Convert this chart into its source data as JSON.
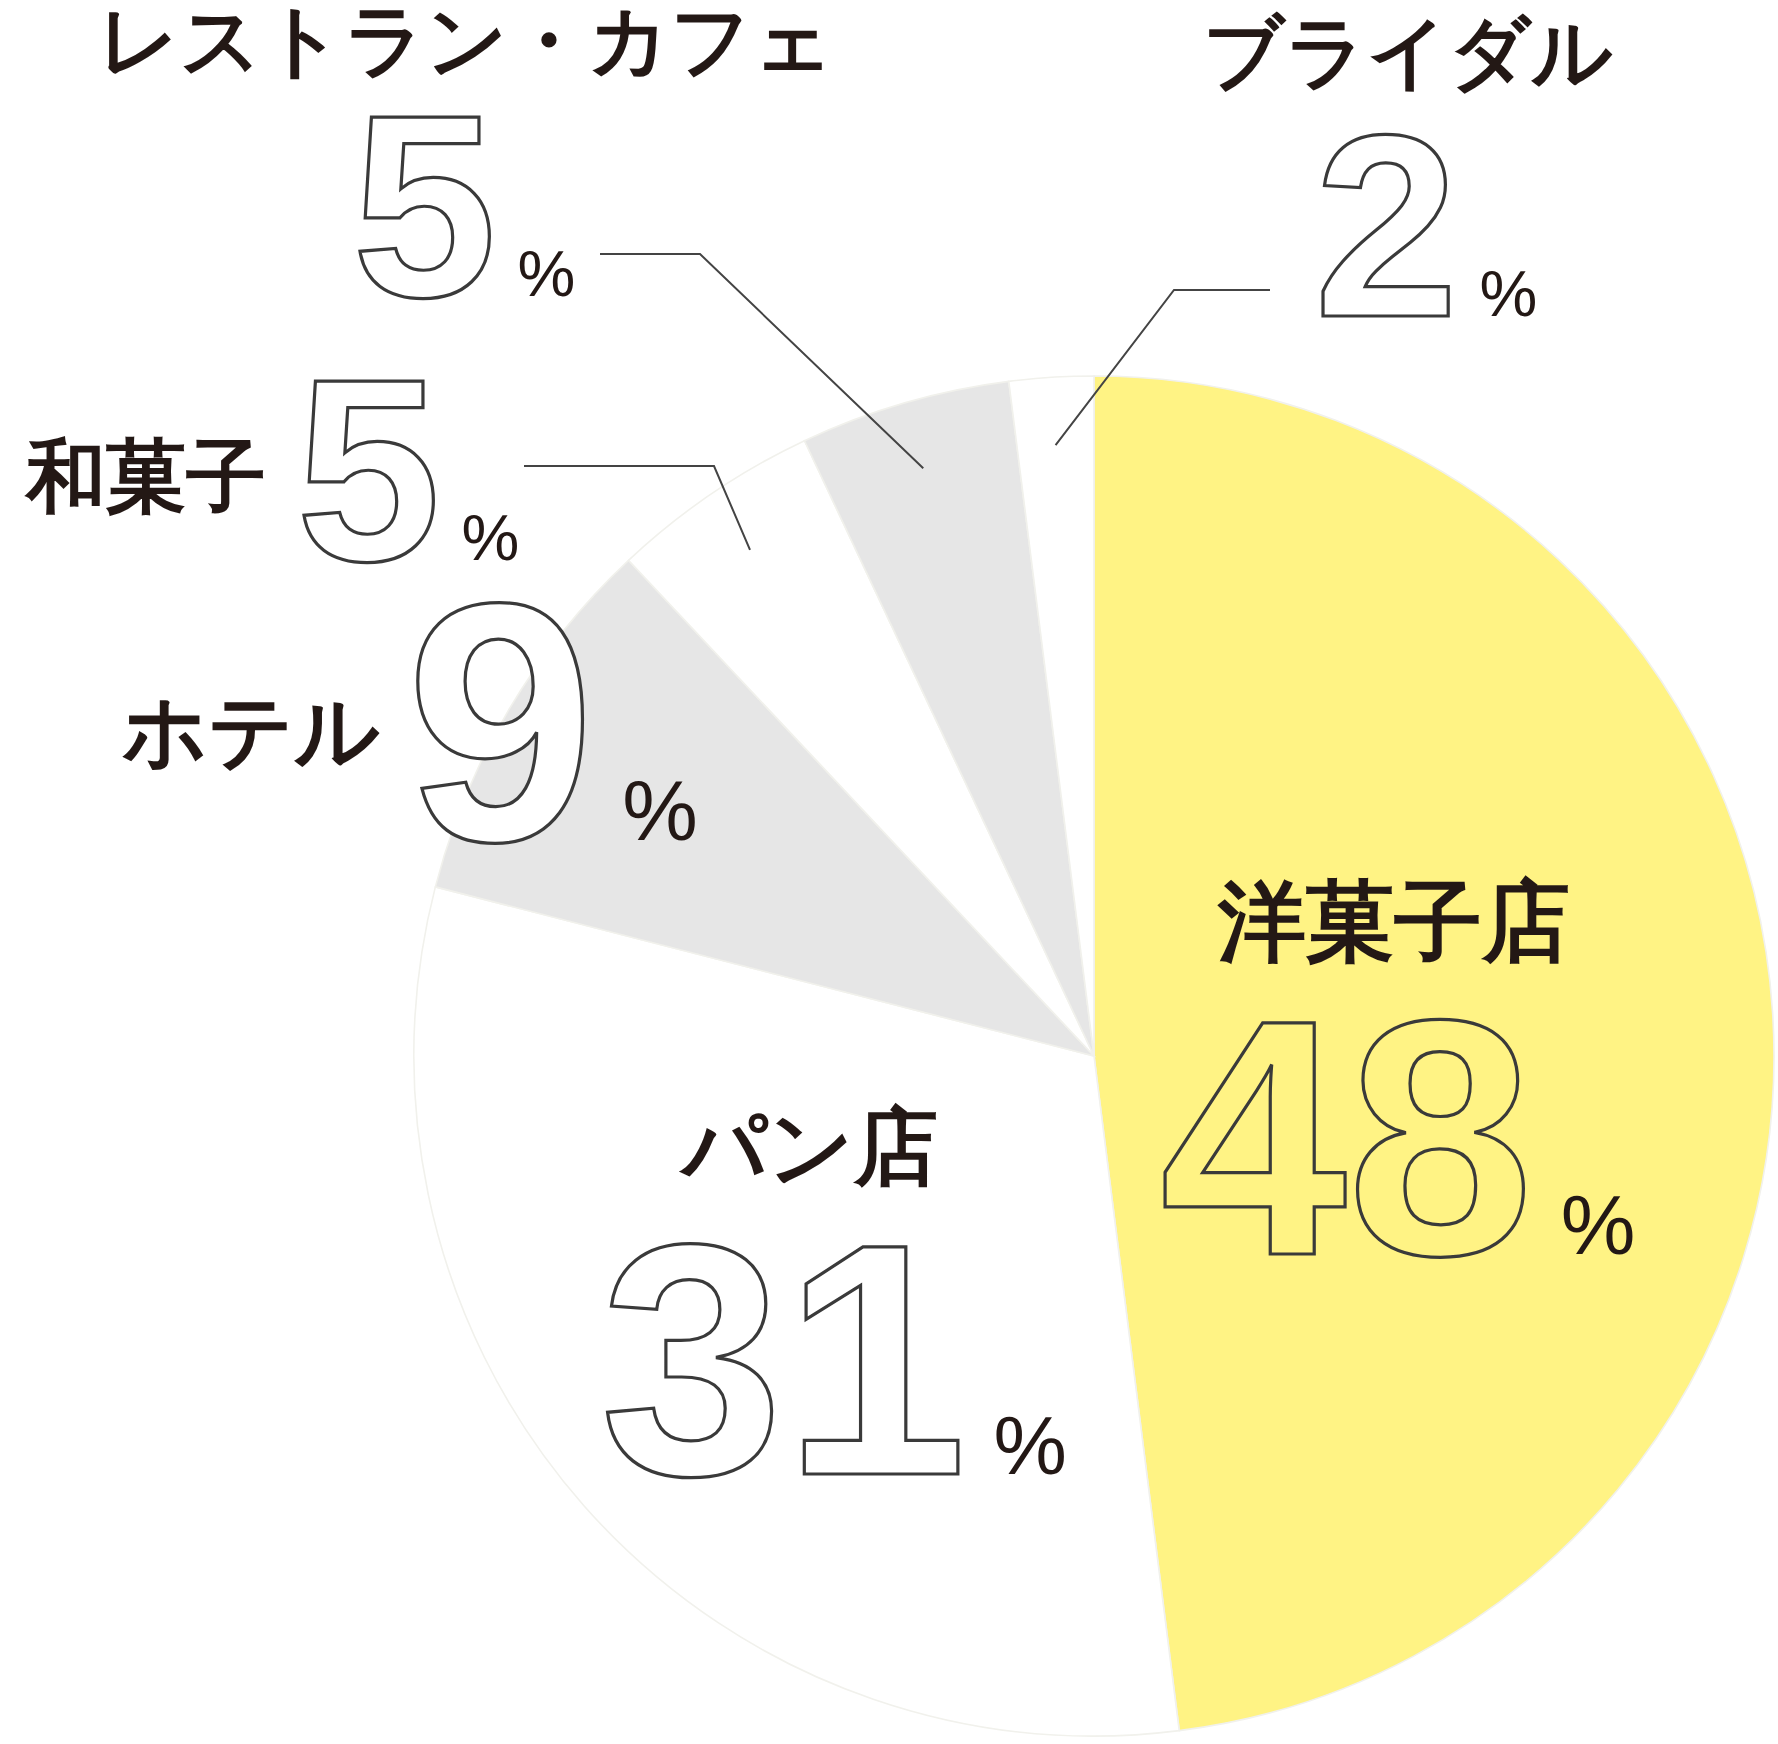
{
  "chart_data": {
    "type": "pie",
    "categories": [
      "洋菓子店",
      "パン店",
      "ホテル",
      "和菓子",
      "レストラン・カフェ",
      "ブライダル"
    ],
    "values": [
      48,
      31,
      9,
      5,
      5,
      2
    ],
    "colors": [
      "#fff384",
      "#ffffff",
      "#e6e6e6",
      "#ffffff",
      "#e6e6e6",
      "#ffffff"
    ],
    "value_labels": [
      "48%",
      "31%",
      "9%",
      "5%",
      "5%",
      "2%"
    ]
  }
}
